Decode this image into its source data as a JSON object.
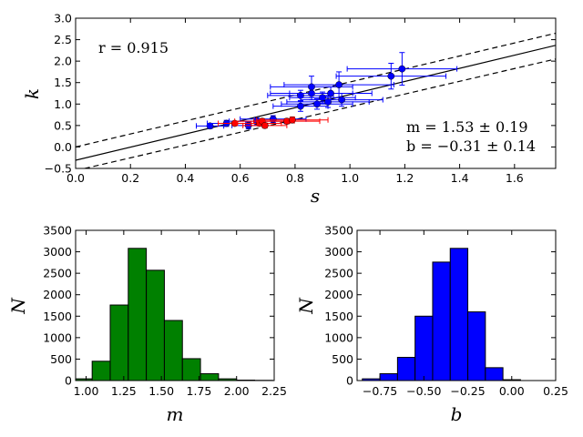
{
  "chart_data": [
    {
      "type": "scatter",
      "xlabel": "s",
      "ylabel": "k",
      "xlim": [
        0.0,
        1.75
      ],
      "ylim": [
        -0.5,
        3.0
      ],
      "xticks": [
        "0.0",
        "0.2",
        "0.4",
        "0.6",
        "0.8",
        "1.0",
        "1.2",
        "1.4",
        "1.6"
      ],
      "yticks": [
        "−0.5",
        "0.0",
        "0.5",
        "1.0",
        "1.5",
        "2.0",
        "2.5",
        "3.0"
      ],
      "annotation_r": "r = 0.915",
      "annotation_m": "m = 1.53 ± 0.19",
      "annotation_b": "b = −0.31 ± 0.14",
      "fit_line": {
        "slope": 1.53,
        "intercept": -0.31
      },
      "upper_band": {
        "x": [
          0.0,
          1.75
        ],
        "y": [
          0.0,
          2.65
        ]
      },
      "lower_band": {
        "x": [
          0.0,
          1.75
        ],
        "y": [
          -0.55,
          2.05
        ]
      },
      "series": [
        {
          "name": "blue",
          "color": "#0000ff",
          "points": [
            {
              "x": 0.49,
              "y": 0.49,
              "xerr": 0.05,
              "yerr": 0.06
            },
            {
              "x": 0.55,
              "y": 0.55,
              "xerr": 0.07,
              "yerr": 0.07
            },
            {
              "x": 0.63,
              "y": 0.5,
              "xerr": 0.06,
              "yerr": 0.08
            },
            {
              "x": 0.66,
              "y": 0.6,
              "xerr": 0.1,
              "yerr": 0.08
            },
            {
              "x": 0.72,
              "y": 0.65,
              "xerr": 0.12,
              "yerr": 0.08
            },
            {
              "x": 0.82,
              "y": 0.95,
              "xerr": 0.1,
              "yerr": 0.12
            },
            {
              "x": 0.82,
              "y": 1.2,
              "xerr": 0.12,
              "yerr": 0.12
            },
            {
              "x": 0.86,
              "y": 1.25,
              "xerr": 0.15,
              "yerr": 0.15
            },
            {
              "x": 0.86,
              "y": 1.4,
              "xerr": 0.15,
              "yerr": 0.25
            },
            {
              "x": 0.88,
              "y": 1.0,
              "xerr": 0.13,
              "yerr": 0.12
            },
            {
              "x": 0.9,
              "y": 1.15,
              "xerr": 0.12,
              "yerr": 0.13
            },
            {
              "x": 0.92,
              "y": 1.05,
              "xerr": 0.15,
              "yerr": 0.13
            },
            {
              "x": 0.93,
              "y": 1.25,
              "xerr": 0.15,
              "yerr": 0.15
            },
            {
              "x": 0.96,
              "y": 1.45,
              "xerr": 0.2,
              "yerr": 0.3
            },
            {
              "x": 0.97,
              "y": 1.1,
              "xerr": 0.15,
              "yerr": 0.15
            },
            {
              "x": 1.15,
              "y": 1.65,
              "xerr": 0.2,
              "yerr": 0.3
            },
            {
              "x": 1.19,
              "y": 1.82,
              "xerr": 0.2,
              "yerr": 0.38
            }
          ]
        },
        {
          "name": "red",
          "color": "#ff0000",
          "points": [
            {
              "x": 0.58,
              "y": 0.55,
              "xerr": 0.06,
              "yerr": 0.05
            },
            {
              "x": 0.67,
              "y": 0.55,
              "xerr": 0.08,
              "yerr": 0.06
            },
            {
              "x": 0.68,
              "y": 0.6,
              "xerr": 0.1,
              "yerr": 0.06
            },
            {
              "x": 0.69,
              "y": 0.5,
              "xerr": 0.08,
              "yerr": 0.06
            },
            {
              "x": 0.77,
              "y": 0.6,
              "xerr": 0.12,
              "yerr": 0.06
            },
            {
              "x": 0.79,
              "y": 0.63,
              "xerr": 0.13,
              "yerr": 0.07
            }
          ]
        }
      ]
    },
    {
      "type": "bar",
      "title": "",
      "xlabel": "m",
      "ylabel": "N",
      "color": "#008000",
      "xlim": [
        0.93,
        2.25
      ],
      "ylim": [
        0,
        3500
      ],
      "xticks": [
        "1.00",
        "1.25",
        "1.50",
        "1.75",
        "2.00",
        "2.25"
      ],
      "yticks": [
        "0",
        "500",
        "1000",
        "1500",
        "2000",
        "2500",
        "3000",
        "3500"
      ],
      "bin_edges": [
        0.93,
        1.04,
        1.16,
        1.28,
        1.4,
        1.52,
        1.64,
        1.76,
        1.88,
        2.0,
        2.12,
        2.24
      ],
      "values": [
        40,
        450,
        1760,
        3080,
        2570,
        1400,
        510,
        160,
        40,
        10,
        5
      ]
    },
    {
      "type": "bar",
      "title": "",
      "xlabel": "b",
      "ylabel": "N",
      "color": "#0000ff",
      "xlim": [
        -0.88,
        0.25
      ],
      "ylim": [
        0,
        3500
      ],
      "xticks": [
        "−0.75",
        "−0.50",
        "−0.25",
        "0.00",
        "0.25"
      ],
      "yticks": [
        "0",
        "500",
        "1000",
        "1500",
        "2000",
        "2500",
        "3000",
        "3500"
      ],
      "bin_edges": [
        -0.85,
        -0.75,
        -0.65,
        -0.55,
        -0.45,
        -0.35,
        -0.25,
        -0.15,
        -0.05,
        0.05
      ],
      "values": [
        40,
        160,
        540,
        1500,
        2760,
        3080,
        1600,
        300,
        20
      ]
    }
  ]
}
